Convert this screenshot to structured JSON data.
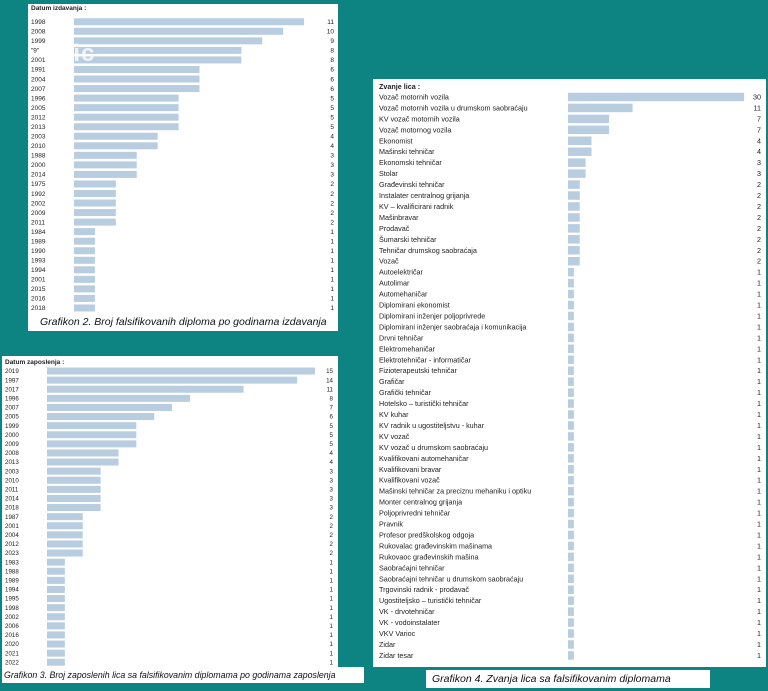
{
  "colors": {
    "background": "#0d8481",
    "bar": "#b8cde0",
    "text": "#222222"
  },
  "watermark": "blic",
  "chart_data": [
    {
      "type": "bar",
      "orientation": "horizontal",
      "title": "Datum izdavanja :",
      "caption": "Grafikon 2. Broj falsifikovanih diploma po godinama izdavanja",
      "categories": [
        "1998",
        "2008",
        "1999",
        "\"9\"",
        "2001",
        "1991",
        "2004",
        "2007",
        "1996",
        "2005",
        "2012",
        "2013",
        "2003",
        "2010",
        "1988",
        "2000",
        "2014",
        "1975",
        "1992",
        "2002",
        "2009",
        "2011",
        "1984",
        "1989",
        "1990",
        "1993",
        "1994",
        "2001",
        "2015",
        "2016",
        "2018"
      ],
      "values": [
        11,
        10,
        9,
        8,
        8,
        6,
        6,
        6,
        5,
        5,
        5,
        5,
        4,
        4,
        3,
        3,
        3,
        2,
        2,
        2,
        2,
        2,
        1,
        1,
        1,
        1,
        1,
        1,
        1,
        1,
        1
      ],
      "xlim": [
        0,
        12
      ]
    },
    {
      "type": "bar",
      "orientation": "horizontal",
      "title": "Datum zaposlenja :",
      "caption": "Grafikon 3. Broj zaposlenih lica sa falsifikovanim diplomama po godinama zaposlenja",
      "categories": [
        "2019",
        "1997",
        "2017",
        "1996",
        "2007",
        "2005",
        "1999",
        "2000",
        "2009",
        "2008",
        "2013",
        "2003",
        "2010",
        "2011",
        "2014",
        "2018",
        "1987",
        "2001",
        "2004",
        "2012",
        "2023",
        "1983",
        "1988",
        "1989",
        "1994",
        "1995",
        "1998",
        "2002",
        "2006",
        "2016",
        "2020",
        "2021",
        "2022"
      ],
      "values": [
        15,
        14,
        11,
        8,
        7,
        6,
        5,
        5,
        5,
        4,
        4,
        3,
        3,
        3,
        3,
        3,
        2,
        2,
        2,
        2,
        2,
        1,
        1,
        1,
        1,
        1,
        1,
        1,
        1,
        1,
        1,
        1,
        1
      ],
      "xlim": [
        0,
        15.5
      ]
    },
    {
      "type": "bar",
      "orientation": "horizontal",
      "title": "Zvanje lica :",
      "caption": "Grafikon 4. Zvanja lica sa falsifikovanim diplomama",
      "categories": [
        "Vozač motornih vozila",
        "Vozač motornih vozila u drumskom saobraćaju",
        "KV vozač motornih vozila",
        "Vozač motornog vozila",
        "Ekonomist",
        "Mašinski tehničar",
        "Ekonomski tehničar",
        "Stolar",
        "Građevinski tehničar",
        "Instalater centralnog grijanja",
        "KV – kvalificirani radnik",
        "Mašinbravar",
        "Prodavač",
        "Šumarski tehničar",
        "Tehničar drumskog saobraćaja",
        "Vozač",
        "Autoelektričar",
        "Autolimar",
        "Automehaničar",
        "Diplomirani ekonomist",
        "Diplomirani inženjer poljoprivrede",
        "Diplomirani inženjer saobraćaja i komunikacija",
        "Drvni tehničar",
        "Elektromehaničar",
        "Elektrotehničar - informatičar",
        "Fizioterapeutski tehničar",
        "Grafičar",
        "Grafički tehničar",
        "Hotelsko – turistički tehničar",
        "KV kuhar",
        "KV radnik u ugostiteljstvu - kuhar",
        "KV vozač",
        "KV vozač u drumskom saobraćaju",
        "Kvalifikovani automehaničar",
        "Kvalifikovani bravar",
        "Kvalifikovani vozač",
        "Mašinski tehničar za preciznu mehaniku i optiku",
        "Monter centralnog grijanja",
        "Poljoprivredni tehničar",
        "Pravnik",
        "Profesor predškolskog odgoja",
        "Rukovalac građevinskim mašinama",
        "Rukovaoc građevinskih mašina",
        "Saobraćajni tehničar",
        "Saobraćajni tehničar u drumskom saobraćaju",
        "Trgovinski radnik - prodavač",
        "Ugostiteljsko – turistički tehničar",
        "VK - drvotehničar",
        "VK - vodoinstalater",
        "VKV Varioc",
        "Zidar",
        "Zidar tesar"
      ],
      "values": [
        30,
        11,
        7,
        7,
        4,
        4,
        3,
        3,
        2,
        2,
        2,
        2,
        2,
        2,
        2,
        2,
        1,
        1,
        1,
        1,
        1,
        1,
        1,
        1,
        1,
        1,
        1,
        1,
        1,
        1,
        1,
        1,
        1,
        1,
        1,
        1,
        1,
        1,
        1,
        1,
        1,
        1,
        1,
        1,
        1,
        1,
        1,
        1,
        1,
        1,
        1,
        1
      ],
      "xlim": [
        0,
        31
      ]
    }
  ]
}
